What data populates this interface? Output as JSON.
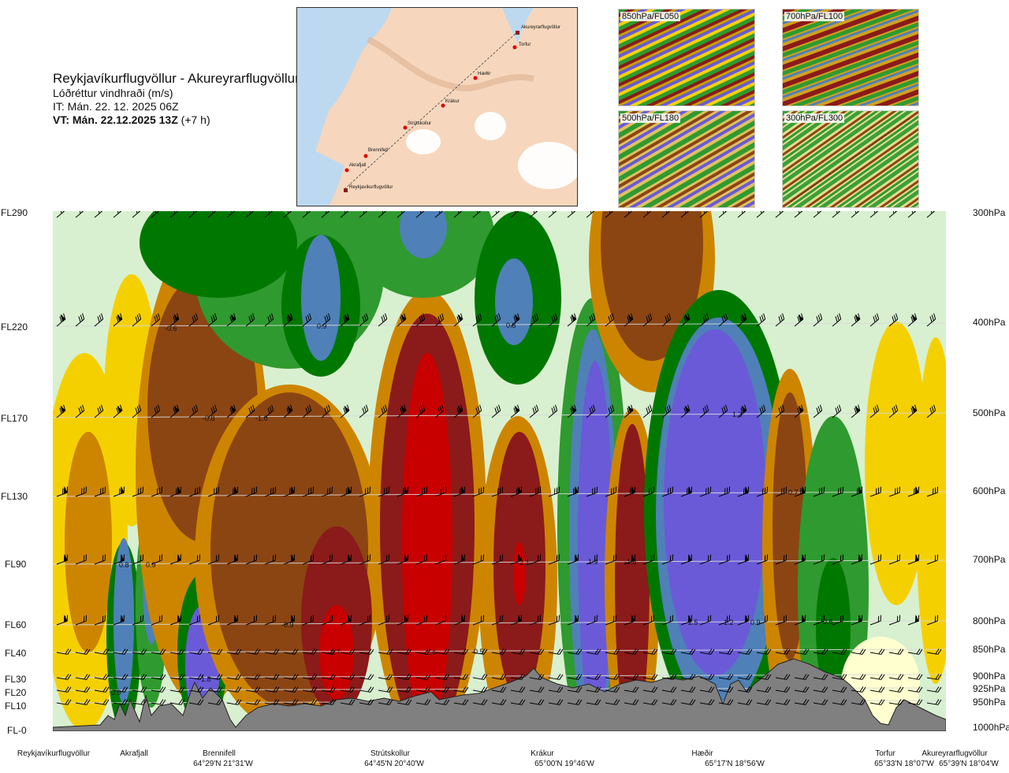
{
  "header": {
    "route": "Reykjavíkurflugvöllur - Akureyrarflugvöllur",
    "parameter": "Lóðréttur vindhraði (m/s)",
    "issue_time": "IT: Mán. 22. 12. 2025 06Z",
    "valid_prefix": "VT: Mán. 22.12.2025 13Z",
    "valid_offset": " (+7 h)"
  },
  "route_map": {
    "points": [
      {
        "name": "Akureyrarflugvöllur"
      },
      {
        "name": "Torfur"
      },
      {
        "name": "Hæðir"
      },
      {
        "name": "Krákur"
      },
      {
        "name": "Strútskollur"
      },
      {
        "name": "Brennifell"
      },
      {
        "name": "Akrafjall"
      },
      {
        "name": "Reykjavíkurflugvöllur"
      }
    ]
  },
  "thumbnails": [
    {
      "label": "850hPa/FL050"
    },
    {
      "label": "700hPa/FL100"
    },
    {
      "label": "500hPa/FL180"
    },
    {
      "label": "300hPa/FL300"
    }
  ],
  "flight_levels": [
    "FL290",
    "FL220",
    "FL170",
    "FL130",
    "FL90",
    "FL60",
    "FL40",
    "FL30",
    "FL20",
    "FL10",
    "FL-0"
  ],
  "pressure_levels": [
    "300hPa",
    "400hPa",
    "500hPa",
    "600hPa",
    "700hPa",
    "800hPa",
    "850hPa",
    "900hPa",
    "925hPa",
    "950hPa",
    "1000hPa"
  ],
  "waypoints": [
    {
      "name": "Reykjavíkurflugvöllur",
      "coord": ""
    },
    {
      "name": "Akrafjall",
      "coord": ""
    },
    {
      "name": "Brennifell",
      "coord": "64°29'N 21°31'W"
    },
    {
      "name": "Strútskollur",
      "coord": "64°45'N 20°40'W"
    },
    {
      "name": "Krákur",
      "coord": "65°00'N 19°46'W"
    },
    {
      "name": "Hæðir",
      "coord": "65°17'N 18°56'W"
    },
    {
      "name": "Torfur",
      "coord": "65°33'N 18°07'W"
    },
    {
      "name": "Akureyrarflugvöllur",
      "coord": "65°39'N 18°04'W"
    }
  ],
  "contour_labels": [
    "-0.6",
    "0.9",
    "0.8",
    "-0.8",
    "-1.0",
    "1.3",
    "-0.7",
    "0.8",
    "0.9",
    "-2.1",
    "1.9",
    "-1.8",
    "-0.9",
    "2.5",
    "1.2",
    "0.9",
    "0.6",
    "-2.7",
    "-1.4",
    "-0.5",
    "1.8",
    "0.9"
  ],
  "colors": {
    "strong_down": "#c80000",
    "down_dark": "#8b1a1a",
    "down_brown": "#8b4513",
    "down_orange": "#cd8500",
    "down_yellow": "#f5d000",
    "neutral_light": "#ffffd0",
    "up_light": "#d8f0d0",
    "up_green": "#2f9a2f",
    "up_darkgreen": "#007800",
    "up_blue": "#4f80b8",
    "strong_up": "#6a5ad8",
    "terrain": "#808080"
  }
}
